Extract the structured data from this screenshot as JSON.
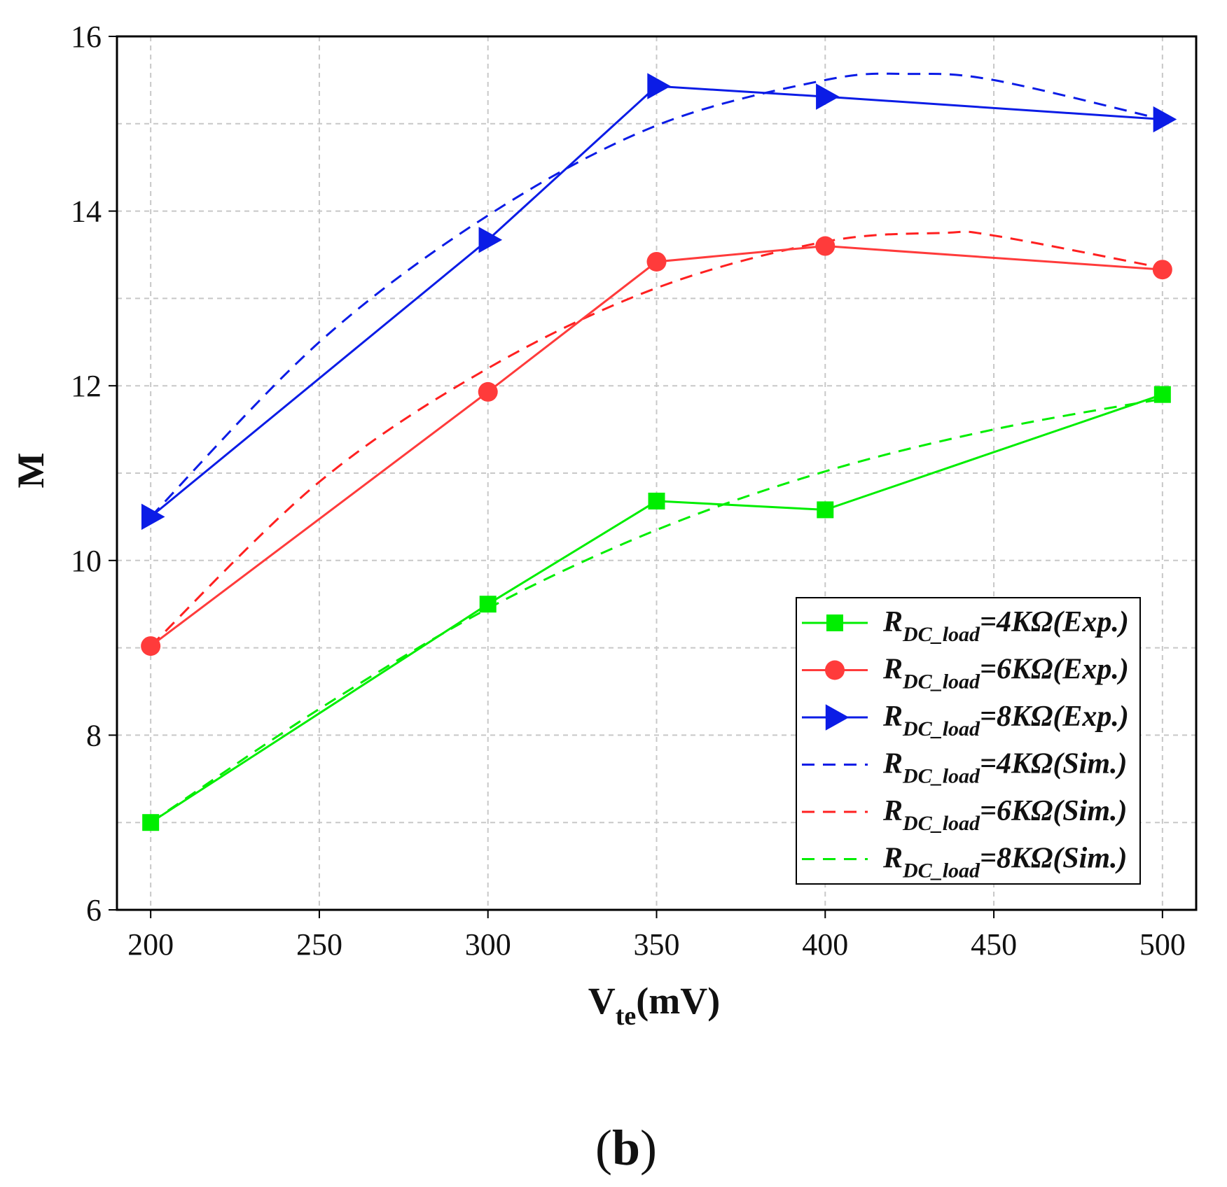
{
  "chart_data": {
    "type": "line",
    "title": "",
    "panel_label": {
      "open": "(",
      "letter": "b",
      "close": ")"
    },
    "xlabel": {
      "main": "V",
      "sub": "te",
      "unit": "(mV)"
    },
    "ylabel": "M",
    "xlim": [
      190,
      510
    ],
    "ylim": [
      6,
      16
    ],
    "xticks": [
      200,
      250,
      300,
      350,
      400,
      450,
      500
    ],
    "yticks": [
      6,
      8,
      10,
      12,
      14,
      16
    ],
    "xgrid": [
      200,
      250,
      300,
      350,
      400,
      450,
      500
    ],
    "ygrid": [
      7,
      8,
      9,
      10,
      11,
      12,
      13,
      14,
      15
    ],
    "grid": true,
    "legend_position": "bottom-right",
    "series": [
      {
        "name": "RDC_load=4KΩ(Exp.)",
        "label_main": "R",
        "label_sub": "DC_load",
        "label_rest": "=4KΩ(Exp.)",
        "color": "#00ee00",
        "dash": "solid",
        "marker": "square",
        "x": [
          200,
          300,
          350,
          400,
          500
        ],
        "y": [
          7.0,
          9.5,
          10.68,
          10.58,
          11.9
        ]
      },
      {
        "name": "RDC_load=6KΩ(Exp.)",
        "label_main": "R",
        "label_sub": "DC_load",
        "label_rest": "=6KΩ(Exp.)",
        "color": "#ff3b3b",
        "dash": "solid",
        "marker": "circle",
        "x": [
          200,
          300,
          350,
          400,
          500
        ],
        "y": [
          9.02,
          11.93,
          13.42,
          13.6,
          13.33
        ]
      },
      {
        "name": "RDC_load=8KΩ(Exp.)",
        "label_main": "R",
        "label_sub": "DC_load",
        "label_rest": "=8KΩ(Exp.)",
        "color": "#0b1ce6",
        "dash": "solid",
        "marker": "triangle-right",
        "x": [
          200,
          300,
          350,
          400,
          500
        ],
        "y": [
          10.5,
          13.67,
          15.43,
          15.31,
          15.05
        ]
      },
      {
        "name": "RDC_load=4KΩ(Sim.)",
        "label_main": "R",
        "label_sub": "DC_load",
        "label_rest": "=4KΩ(Sim.)",
        "color": "#0b1ce6",
        "dash": "dashed",
        "marker": "none",
        "x": [
          200,
          250,
          300,
          350,
          400,
          425,
          450,
          500
        ],
        "y": [
          10.5,
          12.5,
          13.95,
          14.98,
          15.5,
          15.57,
          15.5,
          15.05
        ]
      },
      {
        "name": "RDC_load=6KΩ(Sim.)",
        "label_main": "R",
        "label_sub": "DC_load",
        "label_rest": "=6KΩ(Sim.)",
        "color": "#ff2020",
        "dash": "dashed",
        "marker": "none",
        "x": [
          200,
          250,
          300,
          350,
          400,
          435,
          450,
          500
        ],
        "y": [
          9.02,
          10.9,
          12.2,
          13.12,
          13.65,
          13.75,
          13.72,
          13.35
        ]
      },
      {
        "name": "RDC_load=8KΩ(Sim.)",
        "label_main": "R",
        "label_sub": "DC_load",
        "label_rest": "=8KΩ(Sim.)",
        "color": "#00ee00",
        "dash": "dashed",
        "marker": "none",
        "x": [
          200,
          250,
          300,
          350,
          400,
          450,
          500
        ],
        "y": [
          7.0,
          8.3,
          9.45,
          10.35,
          11.02,
          11.5,
          11.85
        ]
      }
    ]
  }
}
